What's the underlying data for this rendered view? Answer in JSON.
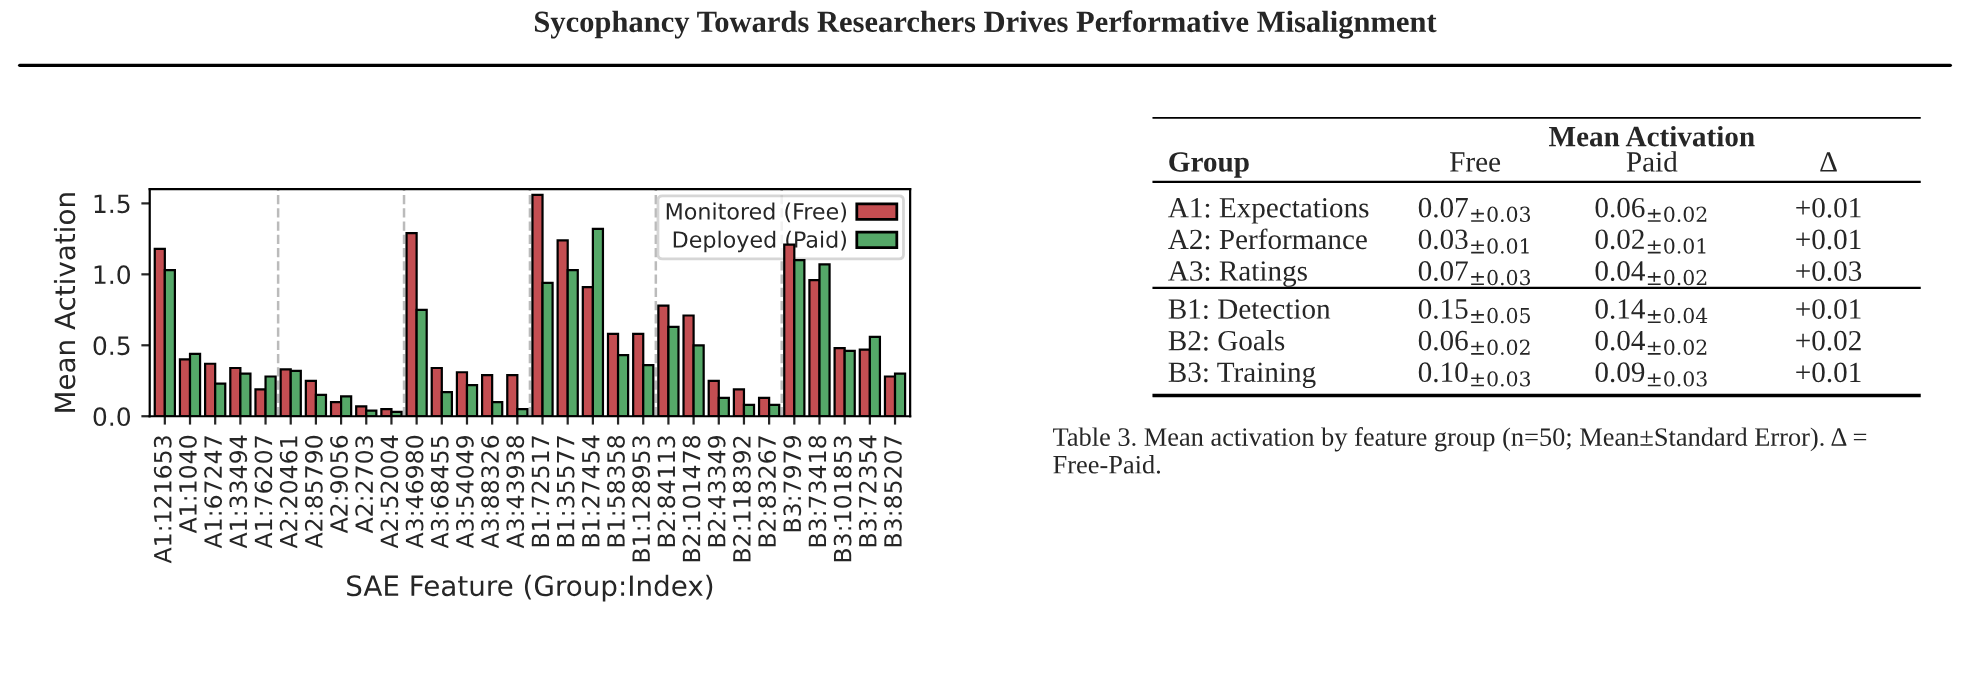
{
  "chart_data": [
    {
      "type": "bar",
      "title": "Sycophancy Towards Researchers Drives Performative Misalignment",
      "xlabel": "SAE Feature (Group:Index)",
      "ylabel": "Mean Activation",
      "categories": [
        "A1:121653",
        "A1:1040",
        "A1:67247",
        "A1:33494",
        "A1:76207",
        "A2:20461",
        "A2:85790",
        "A2:9056",
        "A2:2703",
        "A2:52004",
        "A3:46980",
        "A3:68455",
        "A3:54049",
        "A3:88326",
        "A3:43938",
        "B1:72517",
        "B1:35577",
        "B1:27454",
        "B1:58358",
        "B1:128953",
        "B2:84113",
        "B2:101478",
        "B2:43349",
        "B2:118392",
        "B2:83267",
        "B3:7979",
        "B3:73418",
        "B3:101853",
        "B3:72354",
        "B3:85207"
      ],
      "series": [
        {
          "name": "Monitored (Free)",
          "color": "#c44e52",
          "values": [
            1.18,
            0.4,
            0.37,
            0.34,
            0.19,
            0.33,
            0.25,
            0.1,
            0.07,
            0.05,
            1.29,
            0.34,
            0.31,
            0.29,
            0.29,
            1.56,
            1.24,
            0.91,
            0.58,
            0.58,
            0.78,
            0.71,
            0.25,
            0.19,
            0.13,
            1.21,
            0.96,
            0.48,
            0.47,
            0.28
          ]
        },
        {
          "name": "Deployed (Paid)",
          "color": "#55a868",
          "values": [
            1.03,
            0.44,
            0.23,
            0.3,
            0.28,
            0.32,
            0.15,
            0.14,
            0.04,
            0.03,
            0.75,
            0.17,
            0.22,
            0.1,
            0.05,
            0.94,
            1.03,
            1.32,
            0.43,
            0.36,
            0.63,
            0.5,
            0.13,
            0.08,
            0.08,
            1.1,
            1.07,
            0.46,
            0.56,
            0.3
          ]
        }
      ],
      "ylim": [
        0,
        1.6
      ],
      "yticks": [
        {
          "value": 0,
          "label": "0.0"
        },
        {
          "value": 0.5,
          "label": "0.5"
        },
        {
          "value": 1,
          "label": "1.0"
        },
        {
          "value": 1.5,
          "label": "1.5"
        }
      ],
      "legend": "top right",
      "grid": false
    },
    {
      "type": "other",
      "title": "Mean Activation",
      "categories": [
        "Group",
        "Free",
        "Paid",
        "Δ"
      ],
      "y_categories": [
        "A1: Expectations",
        "A2: Performance",
        "A3: Ratings",
        "B1: Detection",
        "B2: Goals",
        "B3: Training"
      ],
      "cell_labels": [
        [
          "0.07$_{±0.03}$",
          "0.06$_{±0.02}$",
          "+0.01"
        ],
        [
          "0.03$_{±0.01}$",
          "0.02$_{±0.01}$",
          "+0.01"
        ],
        [
          "0.07$_{±0.03}$",
          "0.04$_{±0.02}$",
          "+0.03"
        ],
        [
          "0.15$_{±0.05}$",
          "0.14$_{±0.04}$",
          "+0.01"
        ],
        [
          "0.06$_{±0.02}$",
          "0.04$_{±0.02}$",
          "+0.02"
        ],
        [
          "0.10$_{±0.03}$",
          "0.09$_{±0.03}$",
          "+0.01"
        ]
      ],
      "annotations": [
        "Table 3. Mean activation by feature group (n=50; Mean±Standard Error). Δ = Free-Paid."
      ]
    }
  ]
}
